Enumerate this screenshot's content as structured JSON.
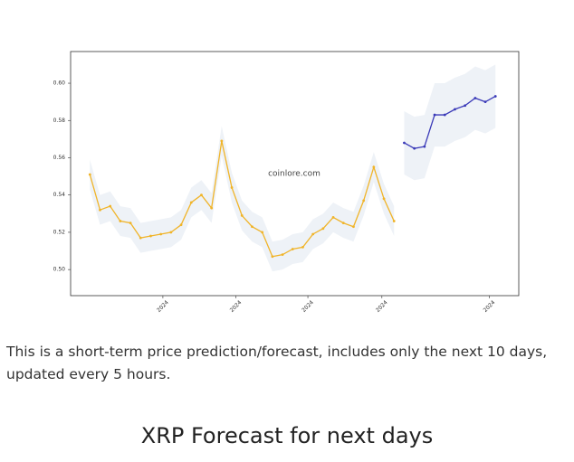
{
  "chart_data": {
    "type": "line",
    "watermark": "coinlore.com",
    "xlim": [
      -1.9,
      42.3
    ],
    "ylim": [
      0.486,
      0.617
    ],
    "xticks": [
      {
        "value": 7.2,
        "label": "2024"
      },
      {
        "value": 14.4,
        "label": "2024"
      },
      {
        "value": 21.5,
        "label": "2024"
      },
      {
        "value": 28.8,
        "label": "2024"
      },
      {
        "value": 39.4,
        "label": "2024"
      }
    ],
    "yticks": [
      {
        "value": 0.5,
        "label": "0.50"
      },
      0.52,
      0.54,
      0.56,
      0.58,
      {
        "value": 0.6,
        "label": "0.60"
      }
    ],
    "band_color": "#eef2f7",
    "series": [
      {
        "color": "#f0b429",
        "x": [
          0,
          1,
          2,
          3,
          4,
          5,
          6,
          7,
          8,
          9,
          10,
          11,
          12,
          13,
          14,
          15,
          16,
          17,
          18,
          19,
          20,
          21,
          22,
          23,
          24,
          25,
          26,
          27,
          28,
          29,
          30
        ],
        "values": [
          0.551,
          0.532,
          0.534,
          0.526,
          0.525,
          0.517,
          0.518,
          0.519,
          0.52,
          0.524,
          0.536,
          0.54,
          0.533,
          0.569,
          0.544,
          0.529,
          0.523,
          0.52,
          0.507,
          0.508,
          0.511,
          0.512,
          0.519,
          0.522,
          0.528,
          0.525,
          0.523,
          0.537,
          0.555,
          0.538,
          0.526
        ],
        "lower": [
          0.543,
          0.524,
          0.526,
          0.518,
          0.517,
          0.509,
          0.51,
          0.511,
          0.512,
          0.516,
          0.528,
          0.532,
          0.525,
          0.561,
          0.536,
          0.521,
          0.515,
          0.512,
          0.499,
          0.5,
          0.503,
          0.504,
          0.511,
          0.514,
          0.52,
          0.517,
          0.515,
          0.529,
          0.547,
          0.53,
          0.518
        ],
        "upper": [
          0.559,
          0.54,
          0.542,
          0.534,
          0.533,
          0.525,
          0.526,
          0.527,
          0.528,
          0.532,
          0.544,
          0.548,
          0.541,
          0.577,
          0.552,
          0.537,
          0.531,
          0.528,
          0.515,
          0.516,
          0.519,
          0.52,
          0.527,
          0.53,
          0.536,
          0.533,
          0.531,
          0.545,
          0.563,
          0.546,
          0.534
        ]
      },
      {
        "color": "#3a3ab8",
        "x": [
          31,
          32,
          33,
          34,
          35,
          36,
          37,
          38,
          39,
          40
        ],
        "values": [
          0.568,
          0.565,
          0.566,
          0.583,
          0.583,
          0.586,
          0.588,
          0.592,
          0.59,
          0.593
        ],
        "lower": [
          0.551,
          0.548,
          0.549,
          0.566,
          0.566,
          0.569,
          0.571,
          0.575,
          0.573,
          0.576
        ],
        "upper": [
          0.585,
          0.582,
          0.583,
          0.6,
          0.6,
          0.603,
          0.605,
          0.609,
          0.607,
          0.61
        ]
      }
    ]
  },
  "description": "This is a short-term price prediction/forecast, includes only the next 10 days, updated every 5 hours.",
  "heading": "XRP Forecast for next days"
}
